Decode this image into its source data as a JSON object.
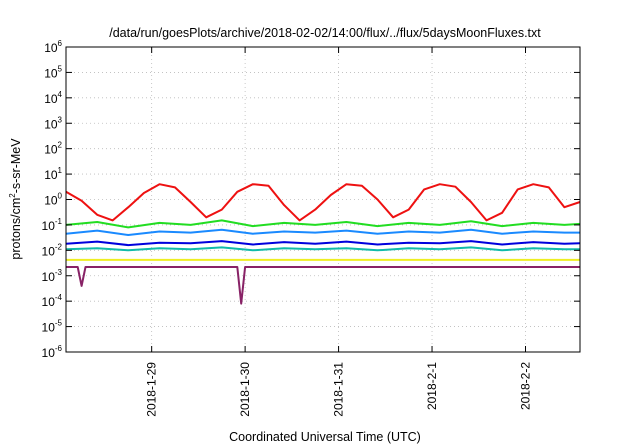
{
  "chart_data": {
    "type": "line",
    "title": "/data/run/goesPlots/archive/2018-02-02/14:00/flux/../flux/5daysMoonFluxes.txt",
    "xlabel": "Coordinated Universal Time (UTC)",
    "ylabel": {
      "pre": "protons/cm",
      "sup": "2",
      "post": "-s-sr-MeV"
    },
    "yscale": "log",
    "ylim": [
      1e-06,
      1000000.0
    ],
    "xlim": [
      "2018-01-28T02:00",
      "2018-02-02T14:00"
    ],
    "grid": true,
    "y_ticks": [
      {
        "base": "10",
        "exp": "6"
      },
      {
        "base": "10",
        "exp": "5"
      },
      {
        "base": "10",
        "exp": "4"
      },
      {
        "base": "10",
        "exp": "3"
      },
      {
        "base": "10",
        "exp": "2"
      },
      {
        "base": "10",
        "exp": "1"
      },
      {
        "base": "10",
        "exp": "0"
      },
      {
        "base": "10",
        "exp": "-1"
      },
      {
        "base": "10",
        "exp": "-2"
      },
      {
        "base": "10",
        "exp": "-3"
      },
      {
        "base": "10",
        "exp": "-4"
      },
      {
        "base": "10",
        "exp": "-5"
      },
      {
        "base": "10",
        "exp": "-6"
      }
    ],
    "x_ticks": [
      "2018-1-29",
      "2018-1-30",
      "2018-1-31",
      "2018-2-1",
      "2018-2-2"
    ],
    "series": [
      {
        "color": "#ee1111",
        "x": [
          "2018-01-28T02:00",
          "2018-01-28T06:00",
          "2018-01-28T10:00",
          "2018-01-28T14:00",
          "2018-01-28T18:00",
          "2018-01-28T22:00",
          "2018-01-29T02:00",
          "2018-01-29T06:00",
          "2018-01-29T10:00",
          "2018-01-29T14:00",
          "2018-01-29T18:00",
          "2018-01-29T22:00",
          "2018-01-30T02:00",
          "2018-01-30T06:00",
          "2018-01-30T10:00",
          "2018-01-30T14:00",
          "2018-01-30T18:00",
          "2018-01-30T22:00",
          "2018-01-31T02:00",
          "2018-01-31T06:00",
          "2018-01-31T10:00",
          "2018-01-31T14:00",
          "2018-01-31T18:00",
          "2018-01-31T22:00",
          "2018-02-01T02:00",
          "2018-02-01T06:00",
          "2018-02-01T10:00",
          "2018-02-01T14:00",
          "2018-02-01T18:00",
          "2018-02-01T22:00",
          "2018-02-02T02:00",
          "2018-02-02T06:00",
          "2018-02-02T10:00",
          "2018-02-02T14:00"
        ],
        "values": [
          2.0,
          0.9,
          0.25,
          0.15,
          0.5,
          1.8,
          4.0,
          3.0,
          0.8,
          0.2,
          0.4,
          2.0,
          4.0,
          3.5,
          0.6,
          0.15,
          0.4,
          1.5,
          4.0,
          3.5,
          1.0,
          0.2,
          0.4,
          2.5,
          4.0,
          3.2,
          0.8,
          0.15,
          0.3,
          2.5,
          4.0,
          3.0,
          0.5,
          0.8
        ]
      },
      {
        "color": "#22dd22",
        "x": [
          "2018-01-28T02:00",
          "2018-01-28T10:00",
          "2018-01-28T18:00",
          "2018-01-29T02:00",
          "2018-01-29T10:00",
          "2018-01-29T18:00",
          "2018-01-30T02:00",
          "2018-01-30T10:00",
          "2018-01-30T18:00",
          "2018-01-31T02:00",
          "2018-01-31T10:00",
          "2018-01-31T18:00",
          "2018-02-01T02:00",
          "2018-02-01T10:00",
          "2018-02-01T18:00",
          "2018-02-02T02:00",
          "2018-02-02T10:00",
          "2018-02-02T14:00"
        ],
        "values": [
          0.1,
          0.13,
          0.08,
          0.12,
          0.1,
          0.15,
          0.09,
          0.12,
          0.1,
          0.13,
          0.09,
          0.12,
          0.1,
          0.14,
          0.09,
          0.12,
          0.1,
          0.11
        ]
      },
      {
        "color": "#1a8aff",
        "x": [
          "2018-01-28T02:00",
          "2018-01-28T10:00",
          "2018-01-28T18:00",
          "2018-01-29T02:00",
          "2018-01-29T10:00",
          "2018-01-29T18:00",
          "2018-01-30T02:00",
          "2018-01-30T10:00",
          "2018-01-30T18:00",
          "2018-01-31T02:00",
          "2018-01-31T10:00",
          "2018-01-31T18:00",
          "2018-02-01T02:00",
          "2018-02-01T10:00",
          "2018-02-01T18:00",
          "2018-02-02T02:00",
          "2018-02-02T10:00",
          "2018-02-02T14:00"
        ],
        "values": [
          0.045,
          0.06,
          0.04,
          0.055,
          0.05,
          0.065,
          0.045,
          0.055,
          0.05,
          0.06,
          0.045,
          0.055,
          0.05,
          0.065,
          0.045,
          0.055,
          0.05,
          0.05
        ]
      },
      {
        "color": "#0000dd",
        "x": [
          "2018-01-28T02:00",
          "2018-01-28T10:00",
          "2018-01-28T18:00",
          "2018-01-29T02:00",
          "2018-01-29T10:00",
          "2018-01-29T18:00",
          "2018-01-30T02:00",
          "2018-01-30T10:00",
          "2018-01-30T18:00",
          "2018-01-31T02:00",
          "2018-01-31T10:00",
          "2018-01-31T18:00",
          "2018-02-01T02:00",
          "2018-02-01T10:00",
          "2018-02-01T18:00",
          "2018-02-02T02:00",
          "2018-02-02T10:00",
          "2018-02-02T14:00"
        ],
        "values": [
          0.018,
          0.022,
          0.016,
          0.02,
          0.019,
          0.023,
          0.017,
          0.021,
          0.018,
          0.022,
          0.017,
          0.02,
          0.019,
          0.023,
          0.017,
          0.021,
          0.018,
          0.019
        ]
      },
      {
        "color": "#11bbaa",
        "x": [
          "2018-01-28T02:00",
          "2018-01-28T10:00",
          "2018-01-28T18:00",
          "2018-01-29T02:00",
          "2018-01-29T10:00",
          "2018-01-29T18:00",
          "2018-01-30T02:00",
          "2018-01-30T10:00",
          "2018-01-30T18:00",
          "2018-01-31T02:00",
          "2018-01-31T10:00",
          "2018-01-31T18:00",
          "2018-02-01T02:00",
          "2018-02-01T10:00",
          "2018-02-01T18:00",
          "2018-02-02T02:00",
          "2018-02-02T10:00",
          "2018-02-02T14:00"
        ],
        "values": [
          0.011,
          0.012,
          0.01,
          0.012,
          0.011,
          0.013,
          0.01,
          0.012,
          0.011,
          0.012,
          0.01,
          0.012,
          0.011,
          0.013,
          0.01,
          0.012,
          0.011,
          0.011
        ]
      },
      {
        "color": "#eeee22",
        "x": [
          "2018-01-28T02:00",
          "2018-01-29T02:00",
          "2018-01-30T02:00",
          "2018-01-31T02:00",
          "2018-02-01T02:00",
          "2018-02-02T02:00",
          "2018-02-02T14:00"
        ],
        "values": [
          0.0042,
          0.0042,
          0.0042,
          0.0042,
          0.0042,
          0.0042,
          0.0042
        ]
      },
      {
        "color": "#882266",
        "x": [
          "2018-01-28T02:00",
          "2018-01-28T05:00",
          "2018-01-28T06:00",
          "2018-01-28T07:00",
          "2018-01-29T02:00",
          "2018-01-29T22:00",
          "2018-01-29T23:00",
          "2018-01-30T00:00",
          "2018-01-31T02:00",
          "2018-02-01T02:00",
          "2018-02-02T02:00",
          "2018-02-02T14:00"
        ],
        "values": [
          0.0022,
          0.0022,
          0.0004,
          0.0022,
          0.0022,
          0.0022,
          8e-05,
          0.0022,
          0.0022,
          0.0022,
          0.0022,
          0.0022
        ]
      }
    ]
  }
}
